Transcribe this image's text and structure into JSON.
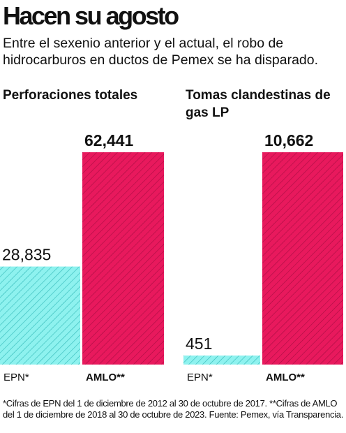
{
  "header": {
    "title": "Hacen su agosto",
    "subtitle": "Entre el sexenio anterior y el actual, el robo de hidrocarburos en ductos de Pemex se ha disparado."
  },
  "chart_data": [
    {
      "type": "bar",
      "title": "Perforaciones totales",
      "categories": [
        "EPN*",
        "AMLO**"
      ],
      "values": [
        28835,
        62441
      ],
      "value_labels": [
        "28,835",
        "62,441"
      ],
      "colors": [
        "#8ef2ef",
        "#e8195d"
      ]
    },
    {
      "type": "bar",
      "title": "Tomas clandestinas de gas LP",
      "categories": [
        "EPN*",
        "AMLO**"
      ],
      "values": [
        451,
        10662
      ],
      "value_labels": [
        "451",
        "10,662"
      ],
      "colors": [
        "#8ef2ef",
        "#e8195d"
      ]
    }
  ],
  "footnote": "*Cifras de EPN del 1 de diciembre de 2012 al 30 de octubre de 2017. **Cifras de AMLO del 1 de diciembre de 2018 al 30 de octubre de 2023. Fuente: Pemex, vía Transparencia."
}
